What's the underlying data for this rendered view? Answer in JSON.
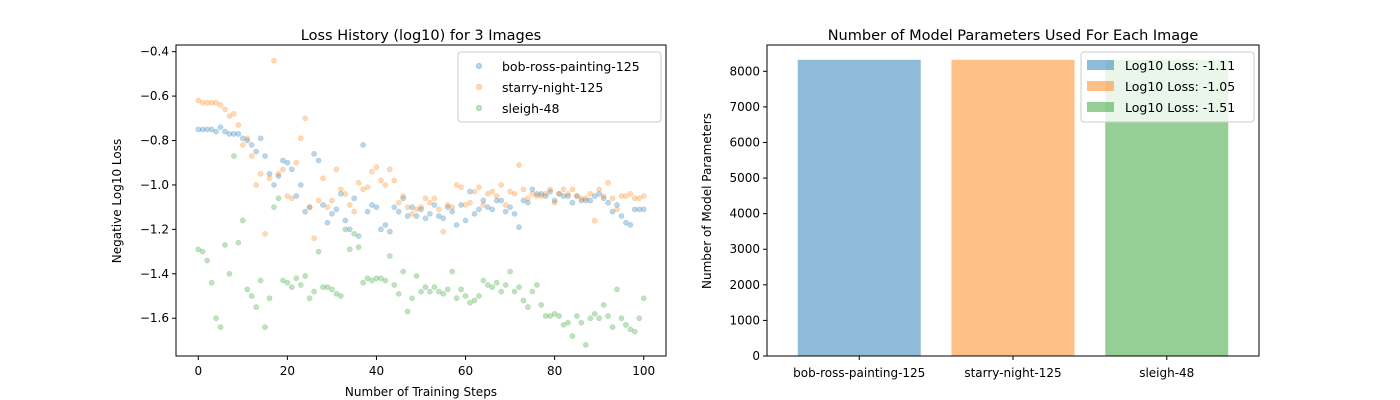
{
  "chart_data": [
    {
      "type": "scatter",
      "title": "Loss History (log10) for 3 Images",
      "xlabel": "Number of Training Steps",
      "ylabel": "Negative Log10 Loss",
      "xlim": [
        -5,
        105
      ],
      "ylim": [
        -1.77,
        -0.37
      ],
      "xticks": [
        0,
        20,
        40,
        60,
        80,
        100
      ],
      "yticks": [
        -1.6,
        -1.4,
        -1.2,
        -1.0,
        -0.8,
        -0.6,
        -0.4
      ],
      "ytick_labels": [
        "−1.6",
        "−1.4",
        "−1.2",
        "−1.0",
        "−0.8",
        "−0.6",
        "−0.4"
      ],
      "legend_position": "upper right",
      "series": [
        {
          "name": "bob-ross-painting-125",
          "color": "#1f77b4",
          "x": [
            0,
            1,
            2,
            3,
            4,
            5,
            6,
            7,
            8,
            9,
            10,
            11,
            12,
            13,
            14,
            15,
            16,
            17,
            18,
            19,
            20,
            21,
            22,
            23,
            24,
            25,
            26,
            27,
            28,
            29,
            30,
            31,
            32,
            33,
            34,
            35,
            36,
            37,
            38,
            39,
            40,
            41,
            42,
            43,
            44,
            45,
            46,
            47,
            48,
            49,
            50,
            51,
            52,
            53,
            54,
            55,
            56,
            57,
            58,
            59,
            60,
            61,
            62,
            63,
            64,
            65,
            66,
            67,
            68,
            69,
            70,
            71,
            72,
            73,
            74,
            75,
            76,
            77,
            78,
            79,
            80,
            81,
            82,
            83,
            84,
            85,
            86,
            87,
            88,
            89,
            90,
            91,
            92,
            93,
            94,
            95,
            96,
            97,
            98,
            99,
            100
          ],
          "y": [
            -0.75,
            -0.75,
            -0.75,
            -0.75,
            -0.76,
            -0.74,
            -0.76,
            -0.77,
            -0.77,
            -0.77,
            -0.79,
            -0.8,
            -0.82,
            -0.85,
            -0.79,
            -0.87,
            -0.95,
            -1.0,
            -0.96,
            -0.89,
            -0.9,
            -0.93,
            -1.05,
            -1.0,
            -1.12,
            -1.1,
            -0.86,
            -0.89,
            -1.09,
            -1.17,
            -1.13,
            -1.11,
            -1.04,
            -1.16,
            -1.2,
            -1.06,
            -1.23,
            -0.82,
            -1.12,
            -1.09,
            -1.1,
            -1.2,
            -1.18,
            -1.21,
            -1.1,
            -1.12,
            -1.06,
            -1.14,
            -1.1,
            -1.14,
            -1.11,
            -1.15,
            -1.13,
            -1.09,
            -1.14,
            -1.15,
            -1.1,
            -1.12,
            -1.18,
            -1.09,
            -1.16,
            -1.03,
            -1.13,
            -1.11,
            -1.07,
            -1.1,
            -1.11,
            -1.07,
            -1.07,
            -1.12,
            -1.1,
            -1.13,
            -1.19,
            -1.07,
            -1.08,
            -1.02,
            -1.04,
            -1.04,
            -1.05,
            -1.03,
            -1.07,
            -1.04,
            -1.05,
            -1.05,
            -1.08,
            -1.05,
            -1.07,
            -1.07,
            -1.07,
            -1.05,
            -1.04,
            -1.06,
            -1.08,
            -1.12,
            -1.09,
            -1.14,
            -1.17,
            -1.18,
            -1.11,
            -1.11,
            -1.11
          ]
        },
        {
          "name": "starry-night-125",
          "color": "#ff7f0e",
          "x": [
            0,
            1,
            2,
            3,
            4,
            5,
            6,
            7,
            8,
            9,
            10,
            11,
            12,
            13,
            14,
            15,
            16,
            17,
            18,
            19,
            20,
            21,
            22,
            23,
            24,
            25,
            26,
            27,
            28,
            29,
            30,
            31,
            32,
            33,
            34,
            35,
            36,
            37,
            38,
            39,
            40,
            41,
            42,
            43,
            44,
            45,
            46,
            47,
            48,
            49,
            50,
            51,
            52,
            53,
            54,
            55,
            56,
            57,
            58,
            59,
            60,
            61,
            62,
            63,
            64,
            65,
            66,
            67,
            68,
            69,
            70,
            71,
            72,
            73,
            74,
            75,
            76,
            77,
            78,
            79,
            80,
            81,
            82,
            83,
            84,
            85,
            86,
            87,
            88,
            89,
            90,
            91,
            92,
            93,
            94,
            95,
            96,
            97,
            98,
            99,
            100
          ],
          "y": [
            -0.62,
            -0.63,
            -0.63,
            -0.63,
            -0.63,
            -0.64,
            -0.66,
            -0.69,
            -0.68,
            -0.73,
            -0.82,
            -0.79,
            -0.87,
            -1.0,
            -0.95,
            -1.22,
            -0.97,
            -0.44,
            -0.95,
            -0.93,
            -1.05,
            -1.06,
            -0.9,
            -0.79,
            -0.7,
            -1.1,
            -1.24,
            -1.07,
            -0.97,
            -1.1,
            -1.07,
            -0.93,
            -1.02,
            -1.04,
            -1.09,
            -1.12,
            -0.99,
            -1.02,
            -1.01,
            -0.94,
            -0.92,
            -0.98,
            -1.0,
            -0.93,
            -0.98,
            -1.08,
            -1.05,
            -1.1,
            -1.13,
            -1.11,
            -1.1,
            -1.06,
            -1.08,
            -1.06,
            -1.11,
            -1.21,
            -1.09,
            -1.1,
            -1.0,
            -1.01,
            -1.09,
            -1.08,
            -1.03,
            -1.01,
            -1.09,
            -1.04,
            -1.03,
            -1.05,
            -1.0,
            -1.09,
            -1.03,
            -1.04,
            -0.91,
            -1.02,
            -1.06,
            -1.04,
            -1.05,
            -1.05,
            -1.04,
            -1.02,
            -1.08,
            -1.04,
            -1.02,
            -1.04,
            -1.02,
            -1.05,
            -1.06,
            -1.06,
            -1.04,
            -1.16,
            -1.02,
            -1.05,
            -0.99,
            -1.06,
            -1.11,
            -1.05,
            -1.05,
            -1.04,
            -1.06,
            -1.06,
            -1.05
          ]
        },
        {
          "name": "sleigh-48",
          "color": "#2ca02c",
          "x": [
            0,
            1,
            2,
            3,
            4,
            5,
            6,
            7,
            8,
            9,
            10,
            11,
            12,
            13,
            14,
            15,
            16,
            17,
            18,
            19,
            20,
            21,
            22,
            23,
            24,
            25,
            26,
            27,
            28,
            29,
            30,
            31,
            32,
            33,
            34,
            35,
            36,
            37,
            38,
            39,
            40,
            41,
            42,
            43,
            44,
            45,
            46,
            47,
            48,
            49,
            50,
            51,
            52,
            53,
            54,
            55,
            56,
            57,
            58,
            59,
            60,
            61,
            62,
            63,
            64,
            65,
            66,
            67,
            68,
            69,
            70,
            71,
            72,
            73,
            74,
            75,
            76,
            77,
            78,
            79,
            80,
            81,
            82,
            83,
            84,
            85,
            86,
            87,
            88,
            89,
            90,
            91,
            92,
            93,
            94,
            95,
            96,
            97,
            98,
            99,
            100
          ],
          "y": [
            -1.29,
            -1.3,
            -1.34,
            -1.44,
            -1.6,
            -1.64,
            -1.27,
            -1.4,
            -0.87,
            -1.26,
            -1.16,
            -1.47,
            -1.5,
            -1.55,
            -1.43,
            -1.64,
            -1.51,
            -1.1,
            -1.06,
            -1.43,
            -1.44,
            -1.46,
            -1.42,
            -1.45,
            -1.41,
            -1.51,
            -1.48,
            -1.3,
            -1.46,
            -1.46,
            -1.47,
            -1.49,
            -1.5,
            -1.2,
            -1.29,
            -1.22,
            -1.28,
            -1.44,
            -1.42,
            -1.43,
            -1.42,
            -1.42,
            -1.43,
            -1.32,
            -1.45,
            -1.49,
            -1.39,
            -1.57,
            -1.51,
            -1.41,
            -1.48,
            -1.46,
            -1.48,
            -1.46,
            -1.48,
            -1.49,
            -1.47,
            -1.39,
            -1.51,
            -1.47,
            -1.5,
            -1.53,
            -1.52,
            -1.5,
            -1.43,
            -1.45,
            -1.46,
            -1.44,
            -1.48,
            -1.45,
            -1.39,
            -1.48,
            -1.46,
            -1.52,
            -1.55,
            -1.48,
            -1.45,
            -1.54,
            -1.59,
            -1.59,
            -1.58,
            -1.59,
            -1.63,
            -1.62,
            -1.68,
            -1.59,
            -1.62,
            -1.72,
            -1.6,
            -1.58,
            -1.6,
            -1.54,
            -1.59,
            -1.64,
            -1.47,
            -1.6,
            -1.63,
            -1.65,
            -1.66,
            -1.6,
            -1.51
          ]
        }
      ]
    },
    {
      "type": "bar",
      "title": "Number of Model Parameters Used For Each Image",
      "xlabel": "",
      "ylabel": "Number of Model Parameters",
      "categories": [
        "bob-ross-painting-125",
        "starry-night-125",
        "sleigh-48"
      ],
      "values": [
        8323,
        8323,
        8323
      ],
      "colors": [
        "#1f77b4",
        "#ff7f0e",
        "#2ca02c"
      ],
      "legend": [
        "Log10 Loss: -1.11",
        "Log10 Loss: -1.05",
        "Log10 Loss: -1.51"
      ],
      "legend_position": "upper right",
      "ylim": [
        0,
        8739
      ],
      "yticks": [
        0,
        1000,
        2000,
        3000,
        4000,
        5000,
        6000,
        7000,
        8000
      ]
    }
  ]
}
